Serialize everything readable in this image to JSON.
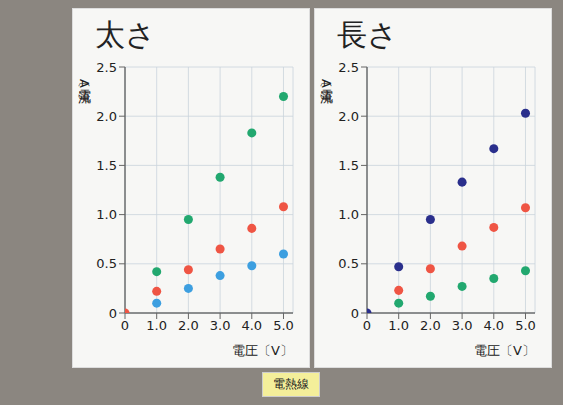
{
  "chart_data": [
    {
      "type": "scatter",
      "title": "太さ",
      "y_label": "電流〔A〕",
      "x_label": "電圧〔V〕",
      "x": [
        0,
        1,
        2,
        3,
        4,
        5
      ],
      "xlim": [
        0,
        5.3
      ],
      "xticks": [
        0,
        {
          "value": 1,
          "label": "1.0"
        },
        {
          "value": 2,
          "label": "2.0"
        },
        {
          "value": 3,
          "label": "3.0"
        },
        {
          "value": 4,
          "label": "4.0"
        },
        {
          "value": 5,
          "label": "5.0"
        }
      ],
      "ylim": [
        0,
        2.5
      ],
      "yticks": [
        0,
        0.5,
        {
          "value": 1,
          "label": "1.0"
        },
        1.5,
        {
          "value": 2,
          "label": "2.0"
        },
        2.5
      ],
      "grid": true,
      "marker": "circle",
      "series": [
        {
          "color": "#22a86f",
          "values": [
            null,
            0.42,
            0.95,
            1.38,
            1.83,
            2.2
          ]
        },
        {
          "color": "#ef5544",
          "values": [
            0,
            0.22,
            0.44,
            0.65,
            0.86,
            1.08
          ]
        },
        {
          "color": "#3d9fe0",
          "values": [
            null,
            0.1,
            0.25,
            0.38,
            0.48,
            0.6
          ]
        }
      ]
    },
    {
      "type": "scatter",
      "title": "長さ",
      "y_label": "電流〔A〕",
      "x_label": "電圧〔V〕",
      "x": [
        0,
        1,
        2,
        3,
        4,
        5
      ],
      "xlim": [
        0,
        5.3
      ],
      "xticks": [
        0,
        {
          "value": 1,
          "label": "1.0"
        },
        {
          "value": 2,
          "label": "2.0"
        },
        {
          "value": 3,
          "label": "3.0"
        },
        {
          "value": 4,
          "label": "4.0"
        },
        {
          "value": 5,
          "label": "5.0"
        }
      ],
      "ylim": [
        0,
        2.5
      ],
      "yticks": [
        0,
        0.5,
        {
          "value": 1,
          "label": "1.0"
        },
        1.5,
        {
          "value": 2,
          "label": "2.0"
        },
        2.5
      ],
      "grid": true,
      "marker": "circle",
      "series": [
        {
          "color": "#2a2f8c",
          "values": [
            0,
            0.47,
            0.95,
            1.33,
            1.67,
            2.03
          ]
        },
        {
          "color": "#ef5544",
          "values": [
            null,
            0.23,
            0.45,
            0.68,
            0.87,
            1.07
          ]
        },
        {
          "color": "#22a86f",
          "values": [
            null,
            0.1,
            0.17,
            0.27,
            0.35,
            0.43
          ]
        }
      ]
    }
  ],
  "note": "電熱線"
}
